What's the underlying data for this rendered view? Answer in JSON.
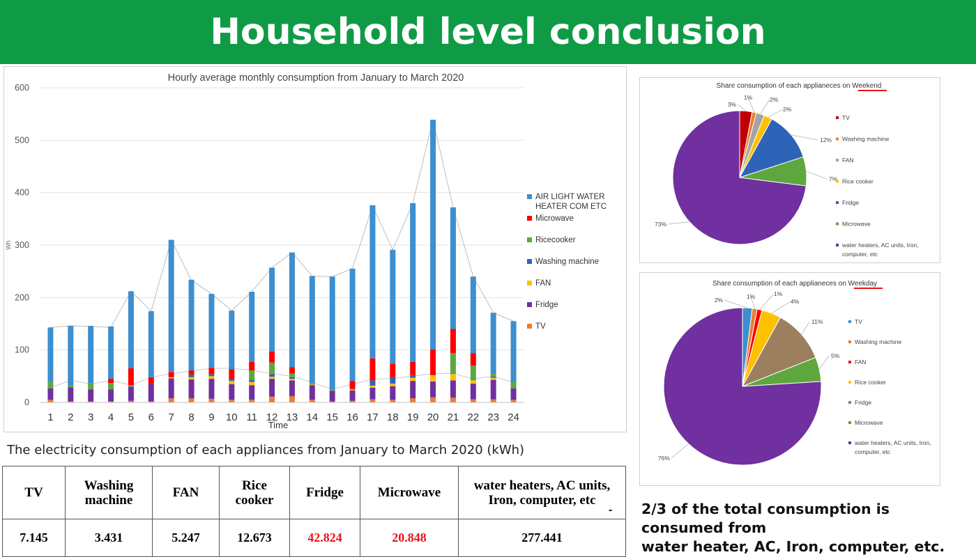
{
  "header": {
    "title": "Household level conclusion"
  },
  "chart_data": [
    {
      "type": "bar",
      "stacked": true,
      "title": "Hourly average monthly consumption from January to March 2020",
      "xlabel": "Time",
      "ylabel": "Wh",
      "ylim": [
        0,
        600
      ],
      "yticks": [
        "0",
        "100",
        "200",
        "300",
        "400",
        "500",
        "600"
      ],
      "grid": true,
      "legend_position": "right",
      "categories": [
        "1",
        "2",
        "3",
        "4",
        "5",
        "6",
        "7",
        "8",
        "9",
        "10",
        "11",
        "12",
        "13",
        "14",
        "15",
        "16",
        "17",
        "18",
        "19",
        "20",
        "21",
        "22",
        "23",
        "24"
      ],
      "series": [
        {
          "name": "TV",
          "color": "#ed7d31",
          "values": [
            5,
            2,
            2,
            2,
            3,
            2,
            8,
            8,
            7,
            5,
            5,
            11,
            12,
            5,
            2,
            3,
            6,
            5,
            8,
            10,
            9,
            6,
            6,
            5
          ]
        },
        {
          "name": "Fridge",
          "color": "#7030a0",
          "values": [
            22,
            27,
            23,
            23,
            27,
            33,
            38,
            36,
            38,
            30,
            28,
            34,
            30,
            28,
            20,
            20,
            22,
            26,
            33,
            30,
            33,
            30,
            37,
            22
          ]
        },
        {
          "name": "FAN",
          "color": "#ffc000",
          "values": [
            0,
            0,
            0,
            0,
            0,
            0,
            2,
            4,
            5,
            6,
            6,
            4,
            3,
            1,
            0,
            1,
            4,
            5,
            6,
            12,
            12,
            6,
            4,
            0
          ]
        },
        {
          "name": "Washing machine",
          "color": "#2e64b8",
          "values": [
            0,
            0,
            0,
            0,
            0,
            0,
            0,
            5,
            4,
            4,
            4,
            5,
            3,
            0,
            0,
            0,
            10,
            12,
            5,
            0,
            0,
            0,
            2,
            0
          ]
        },
        {
          "name": "Ricecooker",
          "color": "#5ea73e",
          "values": [
            12,
            3,
            12,
            12,
            3,
            0,
            0,
            0,
            0,
            0,
            18,
            22,
            7,
            3,
            3,
            2,
            0,
            0,
            0,
            0,
            40,
            28,
            5,
            12
          ]
        },
        {
          "name": "Microwave",
          "color": "#ff0000",
          "values": [
            0,
            0,
            0,
            8,
            32,
            13,
            10,
            8,
            12,
            18,
            16,
            21,
            12,
            0,
            0,
            15,
            42,
            26,
            25,
            49,
            46,
            24,
            0,
            0
          ]
        },
        {
          "name": "AIR LIGHT WATER HEATER COM ETC",
          "color": "#3c8fd0",
          "values": [
            104,
            114,
            109,
            100,
            147,
            126,
            252,
            173,
            141,
            112,
            134,
            160,
            219,
            204,
            215,
            214,
            292,
            217,
            303,
            438,
            232,
            146,
            117,
            116
          ]
        }
      ],
      "totals_line": [
        143,
        146,
        145,
        143,
        212,
        174,
        310,
        233,
        207,
        175,
        211,
        257,
        286,
        241,
        240,
        255,
        375,
        291,
        380,
        539,
        372,
        240,
        171,
        155
      ],
      "lower_line": [
        28,
        42,
        35,
        42,
        33,
        48,
        55,
        60,
        65,
        65,
        61,
        55,
        50,
        38,
        25,
        35,
        44,
        46,
        50,
        55,
        55,
        45,
        50,
        38
      ]
    },
    {
      "type": "pie",
      "title": "Share consumption of each applianeces on Weekend",
      "title_underlined": "Weekend",
      "legend_position": "right",
      "labels": [
        "TV",
        "Washing machine",
        "FAN",
        "Rice cooker",
        "Fridge",
        "Microwave",
        "water heaters, AC units, Iron, computer, etc"
      ],
      "legend_lines": [
        [
          "TV"
        ],
        [
          "Washing machine"
        ],
        [
          "FAN"
        ],
        [
          "Rice cooker"
        ],
        [
          "Fridge"
        ],
        [
          "Microwave"
        ],
        [
          "water heaters, AC units, Iron,",
          "computer, etc"
        ]
      ],
      "colors": [
        "#c00000",
        "#ed7d31",
        "#a5a5a5",
        "#ffc000",
        "#2e64b8",
        "#5ea73e",
        "#7030a0"
      ],
      "values": [
        3,
        1,
        2,
        2,
        12,
        7,
        73
      ],
      "value_labels": [
        "3%",
        "1%",
        "2%",
        "2%",
        "12%",
        "7%",
        "73%"
      ]
    },
    {
      "type": "pie",
      "title": "Share consumption of each applianeces on Weekday",
      "title_underlined": "Weekday",
      "legend_position": "right",
      "labels": [
        "TV",
        "Washing machine",
        "FAN",
        "Rice cooker",
        "Fridge",
        "Microwave",
        "water heaters, AC units, Iron, computer, etc"
      ],
      "legend_lines": [
        [
          "TV"
        ],
        [
          "Washing machine"
        ],
        [
          "FAN"
        ],
        [
          "Rice cooker"
        ],
        [
          "Fridge"
        ],
        [
          "Microwave"
        ],
        [
          "water heaters, AC units, Iron,",
          "computer, etc"
        ]
      ],
      "colors": [
        "#3c8fd0",
        "#ed7d31",
        "#ff0000",
        "#ffc000",
        "#9b7f5e",
        "#5ea73e",
        "#7030a0"
      ],
      "values": [
        2,
        1,
        1,
        4,
        11,
        5,
        76
      ],
      "value_labels": [
        "2%",
        "1%",
        "1%",
        "4%",
        "11%",
        "5%",
        "76%"
      ]
    }
  ],
  "table": {
    "caption": "The electricity consumption of each appliances from January to March 2020 (kWh)",
    "headers": [
      [
        "TV"
      ],
      [
        "Washing",
        "machine"
      ],
      [
        "FAN"
      ],
      [
        "Rice",
        "cooker"
      ],
      [
        "Fridge"
      ],
      [
        "Microwave"
      ],
      [
        "water heaters, AC units,",
        "Iron, computer, etc"
      ]
    ],
    "values": [
      "7.145",
      "3.431",
      "5.247",
      "12.673",
      "42.824",
      "20.848",
      "277.441"
    ],
    "highlight_color": "#e8141a",
    "highlighted_columns": [
      "Fridge",
      "Microwave"
    ],
    "trailing_mark": "-"
  },
  "conclusion": {
    "lines": [
      "2/3  of the total consumption is consumed from",
      "water heater, AC, Iron, computer, etc."
    ]
  }
}
